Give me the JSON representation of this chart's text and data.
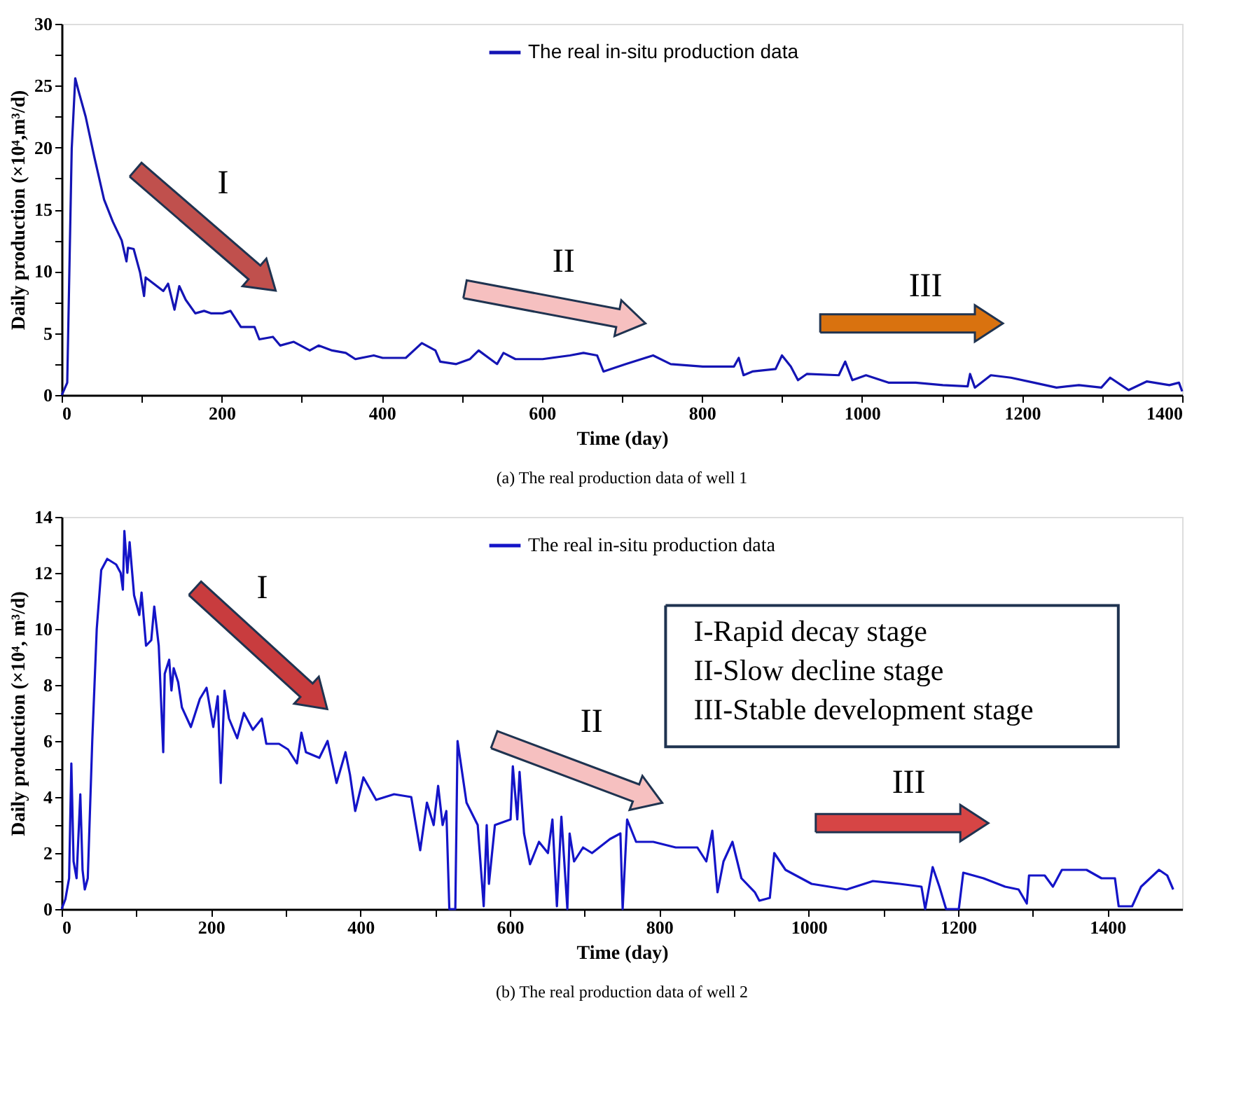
{
  "chart_data": [
    {
      "type": "line",
      "title": "(a)  The real production data of well 1",
      "xlabel": "Time (day)",
      "ylabel": "Daily production (×10⁴,m³/d)",
      "xlim": [
        0,
        1400
      ],
      "xticks": [
        0,
        {
          "value": 100,
          "label": null
        },
        200,
        {
          "value": 300,
          "label": null
        },
        400,
        {
          "value": 500,
          "label": null
        },
        600,
        {
          "value": 700,
          "label": null
        },
        800,
        {
          "value": 900,
          "label": null
        },
        1000,
        {
          "value": 1100,
          "label": null
        },
        1200,
        {
          "value": 1300,
          "label": null
        },
        1400
      ],
      "ylim": [
        0,
        30
      ],
      "yticks": [
        0,
        {
          "value": 2.5,
          "label": null
        },
        5,
        {
          "value": 7.5,
          "label": null
        },
        10,
        {
          "value": 12.5,
          "label": null
        },
        15,
        {
          "value": 17.5,
          "label": null
        },
        20,
        {
          "value": 22.5,
          "label": null
        },
        25,
        {
          "value": 27.5,
          "label": null
        },
        30
      ],
      "grid": false,
      "legend": "top",
      "marker": "none",
      "line_style": "solid",
      "annotations": [
        "I",
        "II",
        "III"
      ],
      "series": [
        {
          "name": "The real in-situ production data",
          "color": "#1414b4",
          "x": [
            0,
            1,
            7,
            12.6,
            17,
            21,
            30,
            41,
            53,
            64,
            75,
            81,
            83,
            90,
            98,
            103,
            105,
            115,
            127,
            133,
            141,
            147,
            155,
            167,
            178,
            187,
            201,
            211,
            224,
            241,
            247,
            264,
            273,
            290,
            310,
            321,
            338,
            355,
            367,
            390,
            401,
            430,
            450,
            467,
            473,
            493,
            510,
            521,
            544,
            552,
            567,
            601,
            635,
            652,
            669,
            677,
            686,
            705,
            739,
            761,
            801,
            840,
            846,
            852,
            863,
            892,
            900,
            911,
            920,
            931,
            971,
            979,
            988,
            1005,
            1033,
            1067,
            1101,
            1132,
            1135,
            1141,
            1161,
            1186,
            1215,
            1243,
            1271,
            1299,
            1310,
            1333,
            1356,
            1384,
            1396,
            1400
          ],
          "values": [
            0,
            0.1,
            1.0,
            19.9,
            25.6,
            24.6,
            22.5,
            19.2,
            15.8,
            14.0,
            12.5,
            10.8,
            11.9,
            11.8,
            9.9,
            8.0,
            9.5,
            9.0,
            8.4,
            9.0,
            6.9,
            8.8,
            7.7,
            6.6,
            6.8,
            6.6,
            6.6,
            6.8,
            5.5,
            5.5,
            4.5,
            4.7,
            4.0,
            4.3,
            3.6,
            4.0,
            3.6,
            3.4,
            2.9,
            3.2,
            3.0,
            3.0,
            4.2,
            3.6,
            2.7,
            2.5,
            2.9,
            3.6,
            2.5,
            3.4,
            2.9,
            2.9,
            3.2,
            3.4,
            3.2,
            1.9,
            2.1,
            2.5,
            3.2,
            2.5,
            2.3,
            2.3,
            3.0,
            1.6,
            1.9,
            2.1,
            3.2,
            2.3,
            1.2,
            1.7,
            1.6,
            2.7,
            1.2,
            1.6,
            1.0,
            1.0,
            0.8,
            0.7,
            1.7,
            0.6,
            1.6,
            1.4,
            1.0,
            0.6,
            0.8,
            0.6,
            1.4,
            0.4,
            1.1,
            0.8,
            1.0,
            0.3
          ]
        }
      ]
    },
    {
      "type": "line",
      "title": "(b)  The real production data of well 2",
      "xlabel": "Time (day)",
      "ylabel": "Daily production (×10⁴, m³/d)",
      "xlim": [
        0,
        1500
      ],
      "xticks": [
        0,
        {
          "value": 100,
          "label": null
        },
        200,
        {
          "value": 300,
          "label": null
        },
        400,
        {
          "value": 500,
          "label": null
        },
        600,
        {
          "value": 700,
          "label": null
        },
        800,
        {
          "value": 900,
          "label": null
        },
        1000,
        {
          "value": 1100,
          "label": null
        },
        1200,
        {
          "value": 1300,
          "label": null
        },
        1400
      ],
      "ylim": [
        0,
        14
      ],
      "yticks": [
        0,
        {
          "value": 1,
          "label": null
        },
        2,
        {
          "value": 3,
          "label": null
        },
        4,
        {
          "value": 5,
          "label": null
        },
        6,
        {
          "value": 7,
          "label": null
        },
        8,
        {
          "value": 9,
          "label": null
        },
        10,
        {
          "value": 11,
          "label": null
        },
        12,
        {
          "value": 13,
          "label": null
        },
        14
      ],
      "grid": false,
      "legend": "top",
      "marker": "none",
      "line_style": "solid",
      "annotations": [
        "I",
        "II",
        "III",
        "I-Rapid decay stage\nII-Slow decline stage\nIII-Stable development stage"
      ],
      "series": [
        {
          "name": "The real in-situ production data",
          "color": "#1414c8",
          "x": [
            0,
            5,
            10,
            13,
            16,
            20,
            25,
            28,
            31,
            35,
            41,
            47,
            53,
            61,
            73,
            79,
            82,
            84,
            88,
            91,
            97,
            104,
            107,
            113,
            120,
            124,
            130,
            136,
            138,
            144,
            147,
            150,
            156,
            161,
            173,
            185,
            194,
            203,
            209,
            213,
            218,
            224,
            235,
            244,
            256,
            268,
            274,
            291,
            303,
            315,
            321,
            327,
            345,
            356,
            368,
            380,
            386,
            393,
            404,
            421,
            445,
            468,
            480,
            489,
            498,
            504,
            510,
            515,
            519,
            527,
            530,
            542,
            557,
            565,
            569,
            572,
            580,
            601,
            604,
            610,
            613,
            619,
            627,
            639,
            651,
            657,
            663,
            669,
            677,
            680,
            686,
            698,
            710,
            734,
            748,
            751,
            757,
            769,
            792,
            822,
            851,
            863,
            871,
            878,
            886,
            898,
            910,
            928,
            934,
            948,
            954,
            969,
            1004,
            1051,
            1086,
            1122,
            1151,
            1156,
            1166,
            1175,
            1184,
            1201,
            1207,
            1234,
            1263,
            1281,
            1292,
            1295,
            1316,
            1327,
            1339,
            1351,
            1372,
            1392,
            1410,
            1415,
            1433,
            1445,
            1457,
            1469,
            1480,
            1488
          ],
          "values": [
            0,
            0.35,
            1.1,
            5.2,
            1.7,
            1.1,
            4.1,
            1.4,
            0.7,
            1.1,
            6.0,
            10.0,
            12.1,
            12.5,
            12.3,
            12.0,
            11.4,
            13.5,
            12.0,
            13.1,
            11.2,
            10.5,
            11.3,
            9.4,
            9.6,
            10.8,
            9.4,
            5.6,
            8.4,
            8.9,
            7.8,
            8.6,
            8.1,
            7.2,
            6.5,
            7.5,
            7.9,
            6.5,
            7.6,
            4.5,
            7.8,
            6.8,
            6.1,
            7.0,
            6.4,
            6.8,
            5.9,
            5.9,
            5.7,
            5.2,
            6.3,
            5.6,
            5.4,
            6.0,
            4.5,
            5.6,
            4.8,
            3.5,
            4.7,
            3.9,
            4.1,
            4.0,
            2.1,
            3.8,
            3.0,
            4.4,
            3.0,
            3.5,
            0,
            0,
            6.0,
            3.8,
            3.0,
            0.1,
            3.0,
            0.9,
            3.0,
            3.2,
            5.1,
            3.2,
            4.9,
            2.7,
            1.6,
            2.4,
            2.0,
            3.2,
            0.1,
            3.3,
            0,
            2.7,
            1.7,
            2.2,
            2.0,
            2.5,
            2.7,
            0,
            3.2,
            2.4,
            2.4,
            2.2,
            2.2,
            1.7,
            2.8,
            0.6,
            1.7,
            2.4,
            1.1,
            0.6,
            0.3,
            0.4,
            2.0,
            1.4,
            0.9,
            0.7,
            1.0,
            0.9,
            0.8,
            0,
            1.5,
            0.8,
            0,
            0,
            1.3,
            1.1,
            0.8,
            0.7,
            0.2,
            1.2,
            1.2,
            0.8,
            1.4,
            1.4,
            1.4,
            1.1,
            1.1,
            0.1,
            0.1,
            0.8,
            1.1,
            1.4,
            1.2,
            0.7
          ]
        }
      ]
    }
  ]
}
